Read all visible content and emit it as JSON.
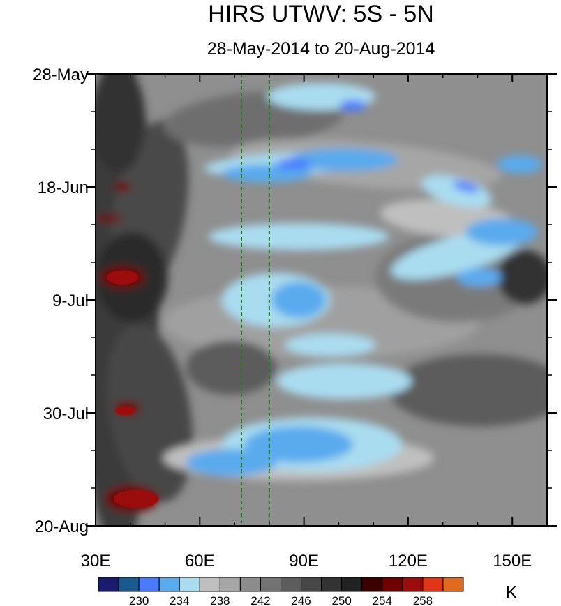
{
  "chart_data": {
    "type": "heatmap",
    "title": "HIRS UTWV: 5S - 5N",
    "subtitle": "28-May-2014 to 20-Aug-2014",
    "x_axis": {
      "ticks": [
        {
          "value": 30,
          "label": "30E"
        },
        {
          "value": 60,
          "label": "60E"
        },
        {
          "value": 90,
          "label": "90E"
        },
        {
          "value": 120,
          "label": "120E"
        },
        {
          "value": 150,
          "label": "150E"
        }
      ],
      "minor_ticks": [
        40,
        50,
        70,
        80,
        100,
        110,
        130,
        140,
        160
      ],
      "range": [
        30,
        160
      ]
    },
    "y_axis": {
      "ticks": [
        {
          "value": 0,
          "label": "28-May"
        },
        {
          "value": 21,
          "label": "18-Jun"
        },
        {
          "value": 42,
          "label": "9-Jul"
        },
        {
          "value": 63,
          "label": "30-Jul"
        },
        {
          "value": 84,
          "label": "20-Aug"
        }
      ],
      "minor_ticks": [
        7,
        14,
        28,
        35,
        49,
        56,
        70,
        77
      ],
      "range": [
        0,
        84
      ],
      "direction": "top-to-bottom"
    },
    "reference_lines_lon": [
      72,
      80
    ],
    "colorbar": {
      "unit": "K",
      "levels": [
        228,
        230,
        232,
        234,
        236,
        238,
        240,
        242,
        244,
        246,
        248,
        250,
        252,
        254,
        256,
        258,
        260
      ],
      "labels": [
        "230",
        "234",
        "238",
        "242",
        "246",
        "250",
        "254",
        "258"
      ],
      "colors": [
        "#1a1a6e",
        "#1a5a8e",
        "#4a7aff",
        "#5aaaee",
        "#aadcf0",
        "#bfbfbf",
        "#a6a6a6",
        "#8c8c8c",
        "#737373",
        "#5c5c5c",
        "#474747",
        "#333333",
        "#222222",
        "#3a0000",
        "#6e0000",
        "#9b0d0d",
        "#e03518",
        "#e06a20"
      ]
    }
  }
}
